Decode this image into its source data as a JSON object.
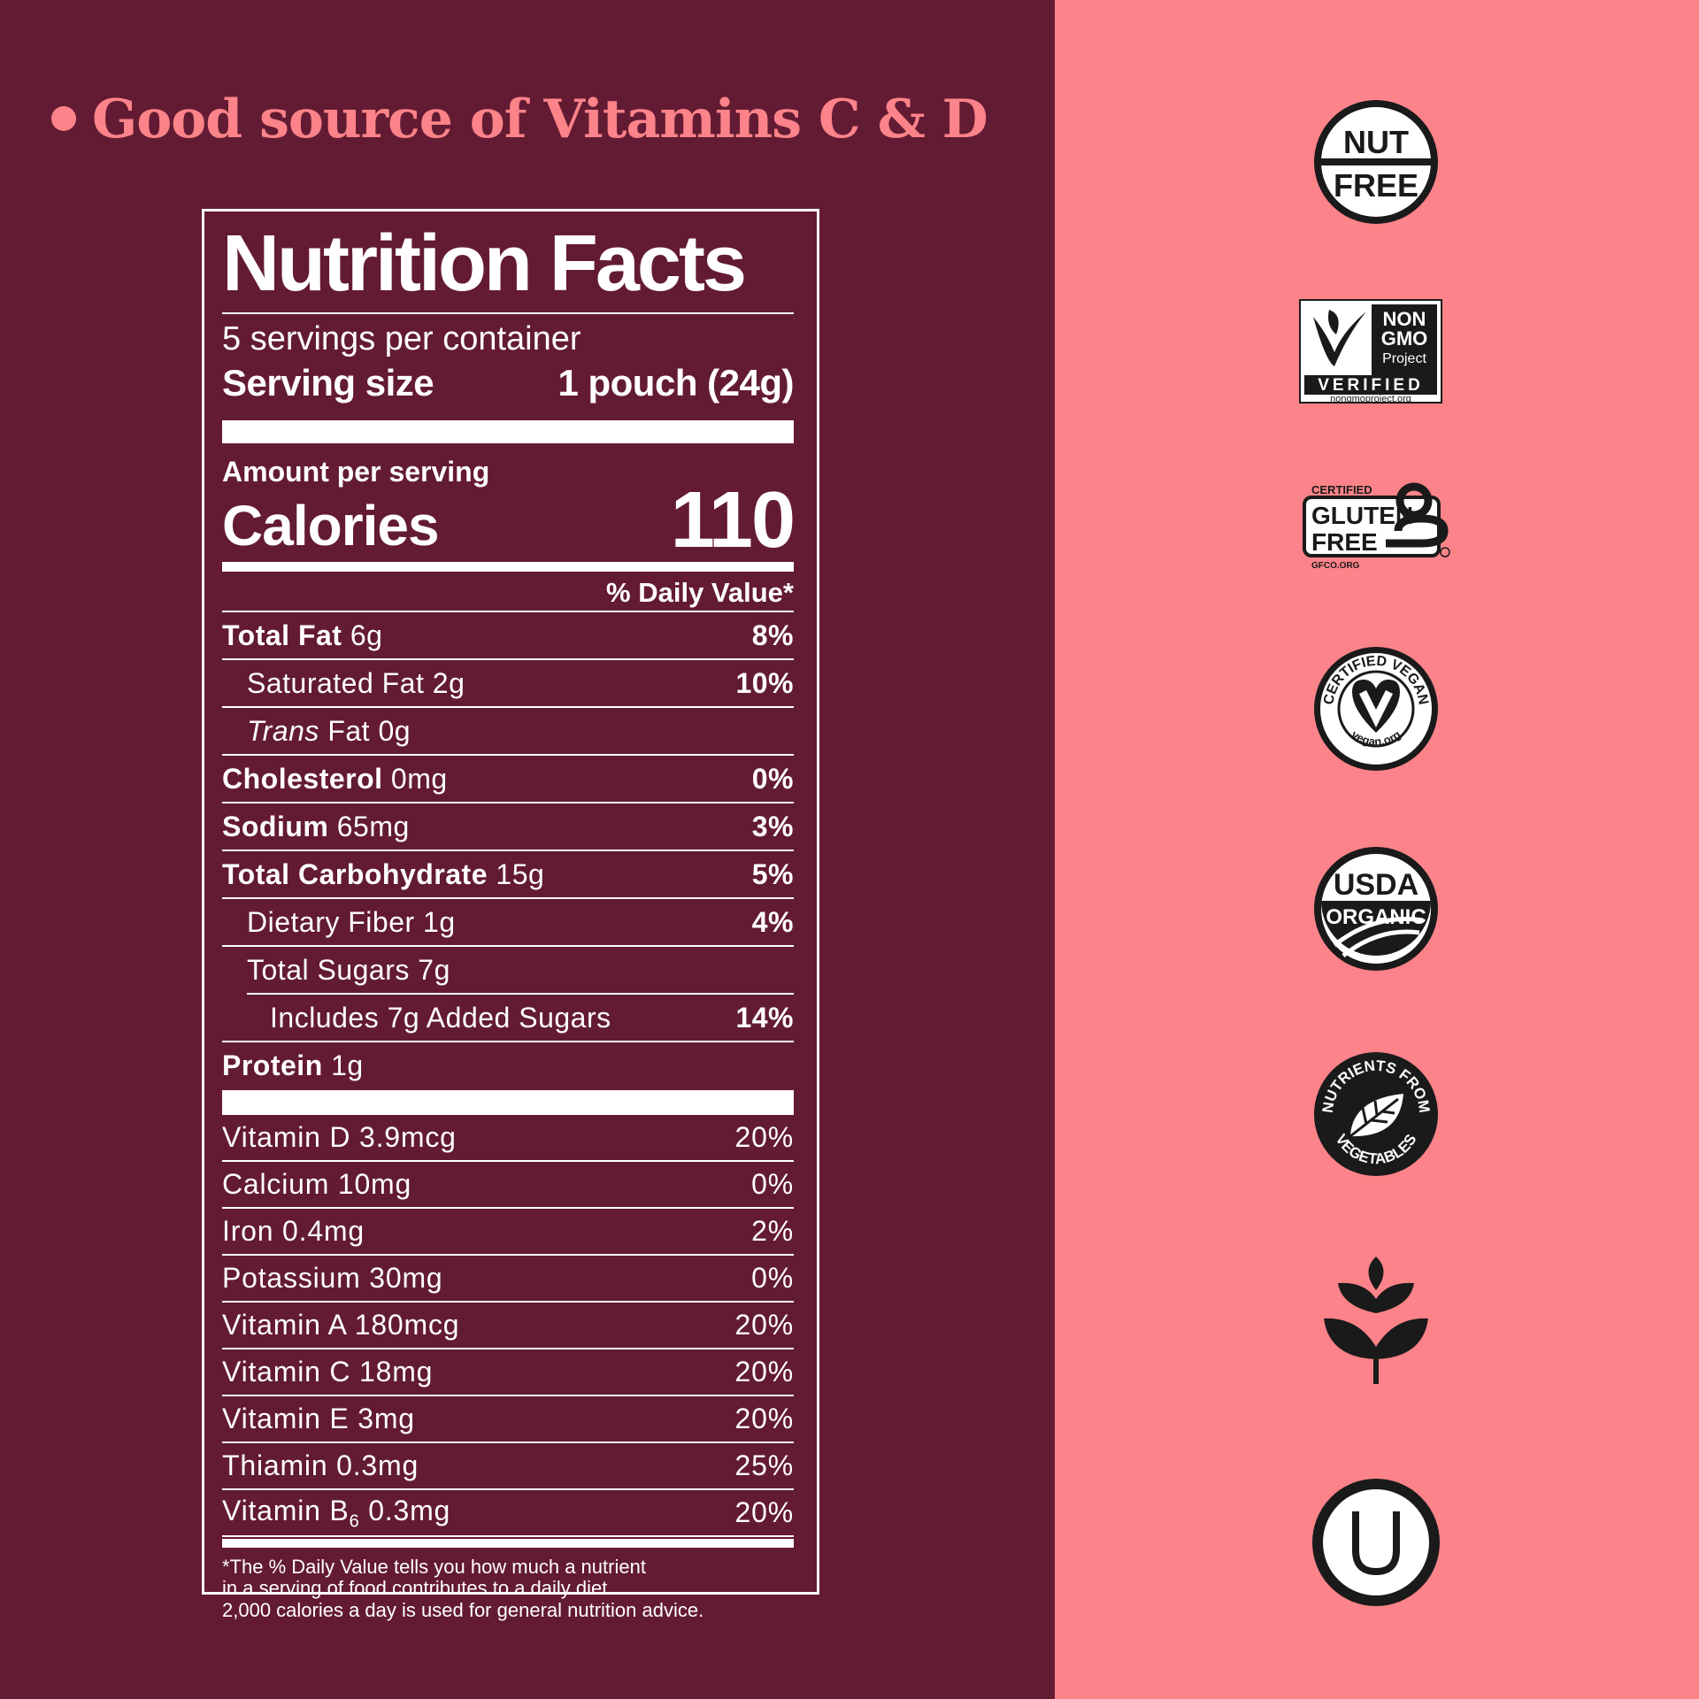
{
  "headline": "Good source of Vitamins C & D",
  "label": {
    "title": "Nutrition Facts",
    "servings": "5 servings per container",
    "serving_size_label": "Serving size",
    "serving_size_value": "1 pouch (24g)",
    "amount_per_serving": "Amount per serving",
    "calories_label": "Calories",
    "calories_value": "110",
    "dv_header": "% Daily Value*",
    "nutrients": [
      {
        "name": "Total Fat",
        "amount": "6g",
        "dv": "8%"
      },
      {
        "name": "Saturated Fat",
        "amount": "2g",
        "dv": "10%"
      },
      {
        "name": "Trans",
        "amount": "Fat 0g",
        "dv": ""
      },
      {
        "name": "Cholesterol",
        "amount": "0mg",
        "dv": "0%"
      },
      {
        "name": "Sodium",
        "amount": "65mg",
        "dv": "3%"
      },
      {
        "name": "Total Carbohydrate",
        "amount": "15g",
        "dv": "5%"
      },
      {
        "name": "Dietary Fiber",
        "amount": "1g",
        "dv": "4%"
      },
      {
        "name": "Total Sugars",
        "amount": "7g",
        "dv": ""
      },
      {
        "name": "Includes 7g Added Sugars",
        "amount": "",
        "dv": "14%"
      },
      {
        "name": "Protein",
        "amount": "1g",
        "dv": ""
      }
    ],
    "vitamins": [
      {
        "name": "Vitamin D 3.9mcg",
        "dv": "20%"
      },
      {
        "name": "Calcium 10mg",
        "dv": "0%"
      },
      {
        "name": "Iron 0.4mg",
        "dv": "2%"
      },
      {
        "name": "Potassium 30mg",
        "dv": "0%"
      },
      {
        "name": "Vitamin A 180mcg",
        "dv": "20%"
      },
      {
        "name": "Vitamin C 18mg",
        "dv": "20%"
      },
      {
        "name": "Vitamin E 3mg",
        "dv": "20%"
      },
      {
        "name": "Thiamin 0.3mg",
        "dv": "25%"
      },
      {
        "name_prefix": "Vitamin B",
        "name_sub": "6",
        "name_suffix": " 0.3mg",
        "dv": "20%"
      }
    ],
    "footnote": [
      "*The % Daily Value tells you how much a nutrient",
      "in a serving of food contributes to a daily diet.",
      "2,000 calories a day is used for general nutrition advice."
    ]
  },
  "badges": {
    "nut_free": [
      "NUT",
      "FREE"
    ],
    "non_gmo": [
      "NON",
      "GMO",
      "Project",
      "VERIFIED",
      "nongmoproject.org"
    ],
    "gluten_free": [
      "CERTIFIED",
      "GLUTEN",
      "FREE",
      "GFCO.ORG"
    ],
    "vegan": [
      "CERTIFIED VEGAN",
      "vegan.org"
    ],
    "usda": [
      "USDA",
      "ORGANIC"
    ],
    "vegetables": [
      "NUTRIENTS FROM",
      "VEGETABLES"
    ]
  },
  "colors": {
    "left_bg": "#631b33",
    "right_bg": "#fc8389",
    "accent": "#fc8389",
    "label_fg": "#ffffff"
  }
}
